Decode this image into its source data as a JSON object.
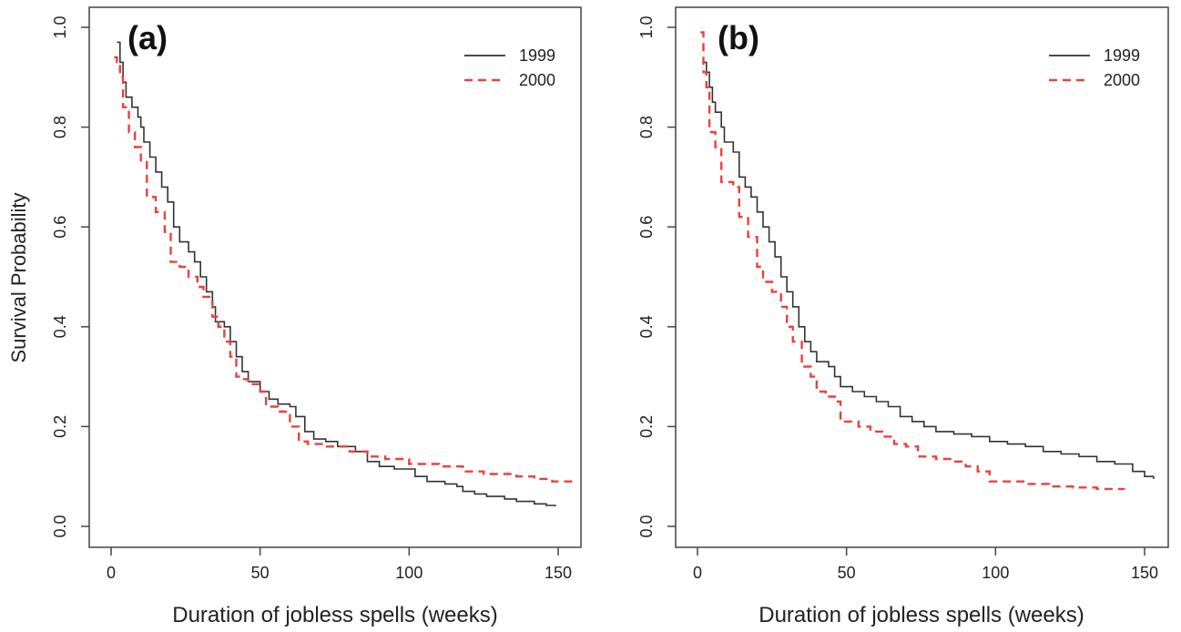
{
  "figure": {
    "ylabel_shared": "Survival Probability"
  },
  "colors": {
    "series_1999": "#333333",
    "series_2000": "#e8423c",
    "axis": "#444444",
    "background": "#ffffff"
  },
  "chart_data": [
    {
      "type": "line",
      "panel_label": "(a)",
      "xlabel": "Duration of jobless spells (weeks)",
      "ylabel": "Survival Probability",
      "xlim": [
        0,
        155
      ],
      "ylim": [
        0,
        1.0
      ],
      "x_ticks": [
        0,
        50,
        100,
        150
      ],
      "y_ticks": [
        0.0,
        0.2,
        0.4,
        0.6,
        0.8,
        1.0
      ],
      "y_tick_labels": [
        "0.0",
        "0.2",
        "0.4",
        "0.6",
        "0.8",
        "1.0"
      ],
      "grid": false,
      "legend": "top-right",
      "step": true,
      "series": [
        {
          "name": "1999",
          "style": "solid",
          "points": [
            [
              2,
              0.97
            ],
            [
              3,
              0.93
            ],
            [
              4,
              0.89
            ],
            [
              5,
              0.86
            ],
            [
              7,
              0.84
            ],
            [
              9,
              0.82
            ],
            [
              10,
              0.8
            ],
            [
              11,
              0.77
            ],
            [
              13,
              0.74
            ],
            [
              15,
              0.71
            ],
            [
              17,
              0.68
            ],
            [
              19,
              0.65
            ],
            [
              21,
              0.6
            ],
            [
              23,
              0.57
            ],
            [
              26,
              0.55
            ],
            [
              28,
              0.53
            ],
            [
              30,
              0.5
            ],
            [
              32,
              0.47
            ],
            [
              34,
              0.44
            ],
            [
              35,
              0.41
            ],
            [
              38,
              0.4
            ],
            [
              40,
              0.37
            ],
            [
              42,
              0.34
            ],
            [
              44,
              0.31
            ],
            [
              46,
              0.29
            ],
            [
              50,
              0.27
            ],
            [
              53,
              0.255
            ],
            [
              56,
              0.245
            ],
            [
              60,
              0.24
            ],
            [
              62,
              0.22
            ],
            [
              65,
              0.19
            ],
            [
              68,
              0.175
            ],
            [
              72,
              0.17
            ],
            [
              76,
              0.16
            ],
            [
              82,
              0.15
            ],
            [
              86,
              0.13
            ],
            [
              90,
              0.12
            ],
            [
              95,
              0.115
            ],
            [
              102,
              0.1
            ],
            [
              106,
              0.09
            ],
            [
              112,
              0.085
            ],
            [
              116,
              0.08
            ],
            [
              118,
              0.07
            ],
            [
              122,
              0.065
            ],
            [
              126,
              0.06
            ],
            [
              132,
              0.055
            ],
            [
              136,
              0.05
            ],
            [
              142,
              0.045
            ],
            [
              146,
              0.042
            ],
            [
              149,
              0.04
            ]
          ]
        },
        {
          "name": "2000",
          "style": "dashed",
          "points": [
            [
              1,
              0.94
            ],
            [
              2,
              0.93
            ],
            [
              3,
              0.9
            ],
            [
              4,
              0.84
            ],
            [
              6,
              0.79
            ],
            [
              8,
              0.76
            ],
            [
              10,
              0.73
            ],
            [
              12,
              0.66
            ],
            [
              15,
              0.63
            ],
            [
              18,
              0.59
            ],
            [
              20,
              0.53
            ],
            [
              23,
              0.52
            ],
            [
              26,
              0.5
            ],
            [
              29,
              0.48
            ],
            [
              31,
              0.46
            ],
            [
              33,
              0.45
            ],
            [
              34,
              0.42
            ],
            [
              36,
              0.4
            ],
            [
              38,
              0.37
            ],
            [
              40,
              0.34
            ],
            [
              42,
              0.3
            ],
            [
              44,
              0.295
            ],
            [
              46,
              0.285
            ],
            [
              50,
              0.27
            ],
            [
              52,
              0.24
            ],
            [
              56,
              0.23
            ],
            [
              60,
              0.2
            ],
            [
              63,
              0.17
            ],
            [
              66,
              0.165
            ],
            [
              72,
              0.16
            ],
            [
              80,
              0.15
            ],
            [
              86,
              0.14
            ],
            [
              92,
              0.135
            ],
            [
              100,
              0.125
            ],
            [
              110,
              0.12
            ],
            [
              118,
              0.11
            ],
            [
              125,
              0.105
            ],
            [
              132,
              0.105
            ],
            [
              136,
              0.1
            ],
            [
              142,
              0.095
            ],
            [
              148,
              0.09
            ],
            [
              155,
              0.085
            ]
          ]
        }
      ]
    },
    {
      "type": "line",
      "panel_label": "(b)",
      "xlabel": "Duration of jobless spells (weeks)",
      "ylabel": "",
      "xlim": [
        0,
        155
      ],
      "ylim": [
        0,
        1.0
      ],
      "x_ticks": [
        0,
        50,
        100,
        150
      ],
      "y_ticks": [
        0.0,
        0.2,
        0.4,
        0.6,
        0.8,
        1.0
      ],
      "y_tick_labels": [
        "0.0",
        "0.2",
        "0.4",
        "0.6",
        "0.8",
        "1.0"
      ],
      "grid": false,
      "legend": "top-right",
      "step": true,
      "series": [
        {
          "name": "1999",
          "style": "solid",
          "points": [
            [
              2,
              0.93
            ],
            [
              3,
              0.91
            ],
            [
              4,
              0.88
            ],
            [
              5,
              0.85
            ],
            [
              6,
              0.83
            ],
            [
              8,
              0.8
            ],
            [
              9,
              0.77
            ],
            [
              12,
              0.75
            ],
            [
              14,
              0.7
            ],
            [
              16,
              0.68
            ],
            [
              18,
              0.66
            ],
            [
              20,
              0.63
            ],
            [
              22,
              0.6
            ],
            [
              24,
              0.57
            ],
            [
              26,
              0.54
            ],
            [
              28,
              0.5
            ],
            [
              30,
              0.47
            ],
            [
              32,
              0.44
            ],
            [
              34,
              0.4
            ],
            [
              36,
              0.37
            ],
            [
              38,
              0.35
            ],
            [
              40,
              0.33
            ],
            [
              44,
              0.32
            ],
            [
              46,
              0.3
            ],
            [
              48,
              0.28
            ],
            [
              52,
              0.27
            ],
            [
              56,
              0.26
            ],
            [
              60,
              0.25
            ],
            [
              64,
              0.24
            ],
            [
              68,
              0.22
            ],
            [
              72,
              0.21
            ],
            [
              76,
              0.2
            ],
            [
              80,
              0.19
            ],
            [
              86,
              0.185
            ],
            [
              92,
              0.18
            ],
            [
              98,
              0.17
            ],
            [
              104,
              0.165
            ],
            [
              110,
              0.16
            ],
            [
              116,
              0.15
            ],
            [
              122,
              0.145
            ],
            [
              128,
              0.14
            ],
            [
              134,
              0.13
            ],
            [
              140,
              0.125
            ],
            [
              146,
              0.11
            ],
            [
              150,
              0.1
            ],
            [
              153,
              0.095
            ]
          ]
        },
        {
          "name": "2000",
          "style": "dashed",
          "points": [
            [
              1,
              0.99
            ],
            [
              2,
              0.91
            ],
            [
              3,
              0.88
            ],
            [
              4,
              0.79
            ],
            [
              6,
              0.76
            ],
            [
              8,
              0.69
            ],
            [
              12,
              0.68
            ],
            [
              14,
              0.62
            ],
            [
              17,
              0.58
            ],
            [
              20,
              0.52
            ],
            [
              22,
              0.49
            ],
            [
              25,
              0.47
            ],
            [
              28,
              0.44
            ],
            [
              30,
              0.4
            ],
            [
              32,
              0.37
            ],
            [
              35,
              0.32
            ],
            [
              38,
              0.3
            ],
            [
              40,
              0.27
            ],
            [
              43,
              0.26
            ],
            [
              46,
              0.25
            ],
            [
              48,
              0.21
            ],
            [
              54,
              0.2
            ],
            [
              58,
              0.19
            ],
            [
              62,
              0.18
            ],
            [
              66,
              0.165
            ],
            [
              70,
              0.16
            ],
            [
              74,
              0.14
            ],
            [
              80,
              0.135
            ],
            [
              86,
              0.13
            ],
            [
              90,
              0.12
            ],
            [
              94,
              0.11
            ],
            [
              98,
              0.09
            ],
            [
              106,
              0.09
            ],
            [
              110,
              0.085
            ],
            [
              118,
              0.08
            ],
            [
              126,
              0.078
            ],
            [
              134,
              0.075
            ],
            [
              143,
              0.073
            ]
          ]
        }
      ]
    }
  ]
}
